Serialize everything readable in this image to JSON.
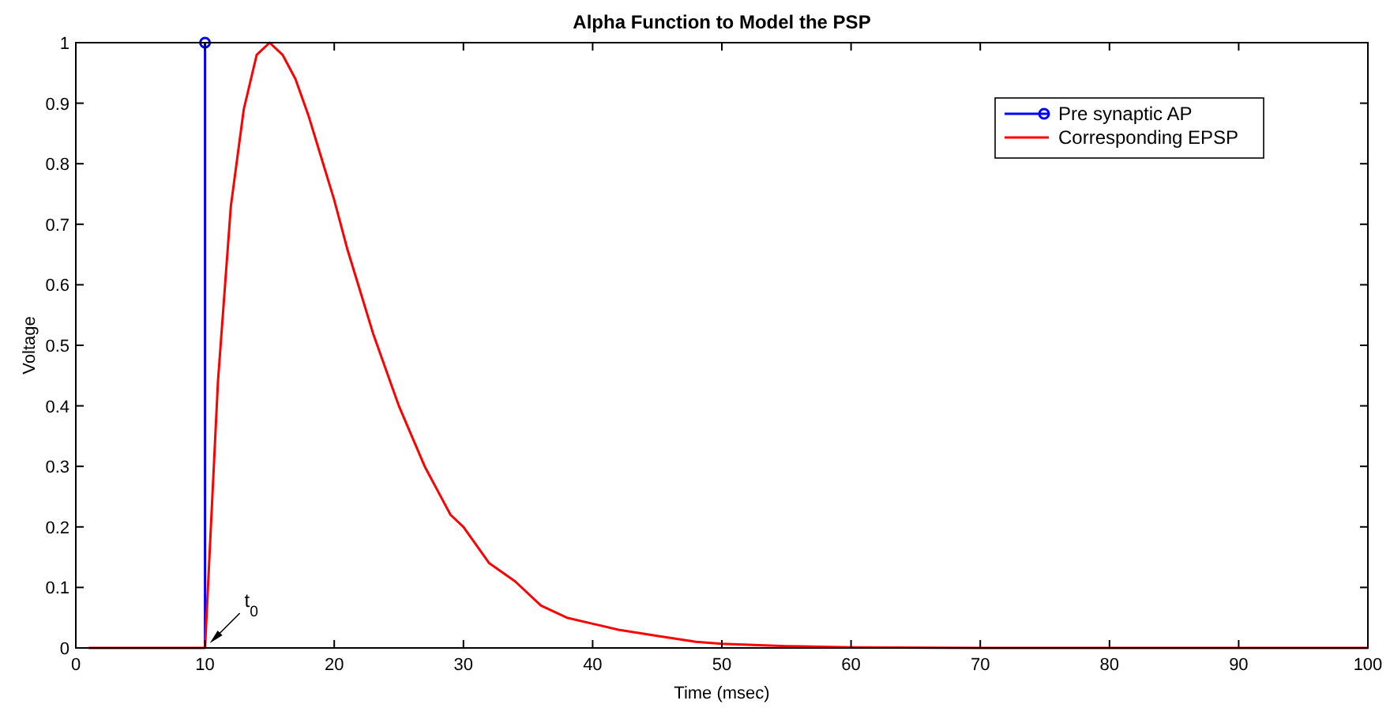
{
  "chart_data": {
    "type": "line",
    "title": "Alpha Function to Model the PSP",
    "xlabel": "Time (msec)",
    "ylabel": "Voltage",
    "xlim": [
      0,
      100
    ],
    "xticks": [
      0,
      10,
      20,
      30,
      40,
      50,
      60,
      70,
      80,
      90,
      100
    ],
    "ylim": [
      0,
      1
    ],
    "yticks": [
      0,
      0.1,
      0.2,
      0.3,
      0.4,
      0.5,
      0.6,
      0.7,
      0.8,
      0.9,
      1
    ],
    "legend": "top right",
    "series": [
      {
        "name": "Pre synaptic AP",
        "type": "lollipop",
        "color": "#0000ff",
        "marker": "circle",
        "x": [
          10
        ],
        "values": [
          1
        ]
      },
      {
        "name": "Corresponding EPSP",
        "color": "#ff0000",
        "x": [
          1,
          2,
          3,
          4,
          5,
          6,
          7,
          8,
          9,
          10,
          11,
          12,
          13,
          14,
          15,
          16,
          17,
          18,
          19,
          20,
          21,
          22,
          23,
          24,
          25,
          26,
          27,
          28,
          29,
          30,
          32,
          34,
          36,
          38,
          40,
          42,
          45,
          48,
          50,
          55,
          60,
          70,
          80,
          90,
          100
        ],
        "values": [
          0,
          0,
          0,
          0,
          0,
          0,
          0,
          0,
          0,
          0,
          0.44,
          0.73,
          0.89,
          0.98,
          1,
          0.98,
          0.94,
          0.88,
          0.81,
          0.74,
          0.66,
          0.59,
          0.52,
          0.46,
          0.4,
          0.35,
          0.3,
          0.26,
          0.22,
          0.2,
          0.14,
          0.11,
          0.07,
          0.05,
          0.04,
          0.03,
          0.02,
          0.01,
          0.007,
          0.003,
          0.001,
          0,
          0,
          0,
          0
        ]
      }
    ],
    "annotations": [
      {
        "text": "t$_{0}$",
        "x": 10,
        "y": 0
      }
    ]
  }
}
